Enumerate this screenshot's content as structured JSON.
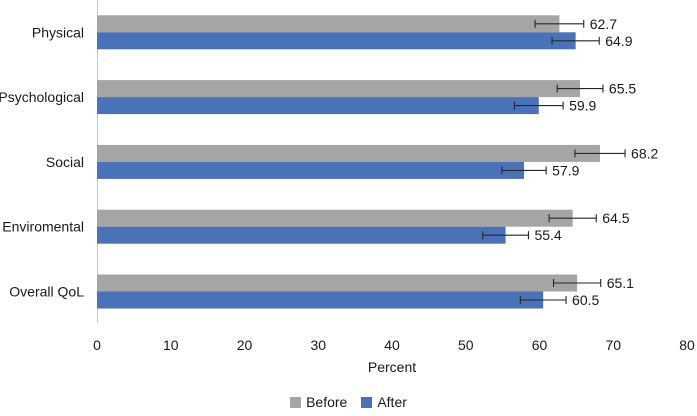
{
  "chart_data": {
    "type": "bar",
    "orientation": "horizontal",
    "categories": [
      "Physical",
      "Psychological",
      "Social",
      "Enviromental",
      "Overall QoL"
    ],
    "series": [
      {
        "name": "Before",
        "color": "#a5a5a5",
        "values": [
          62.7,
          65.5,
          68.2,
          64.5,
          65.1
        ],
        "errors_plus_minus": [
          3.3,
          3.1,
          3.4,
          3.2,
          3.2
        ]
      },
      {
        "name": "After",
        "color": "#4a72b8",
        "values": [
          64.9,
          59.9,
          57.9,
          55.4,
          60.5
        ],
        "errors_plus_minus": [
          3.2,
          3.3,
          3.0,
          3.1,
          3.1
        ]
      }
    ],
    "xlabel": "Percent",
    "xlim": [
      0,
      80
    ],
    "xticks": [
      0,
      10,
      20,
      30,
      40,
      50,
      60,
      70,
      80
    ],
    "value_labels": true,
    "value_label_format": "one_decimal",
    "error_bars": true,
    "grid": false,
    "legend_position": "bottom-center",
    "axis_line_color": "#c6c6c6",
    "text_color": "#1a1a1a"
  }
}
